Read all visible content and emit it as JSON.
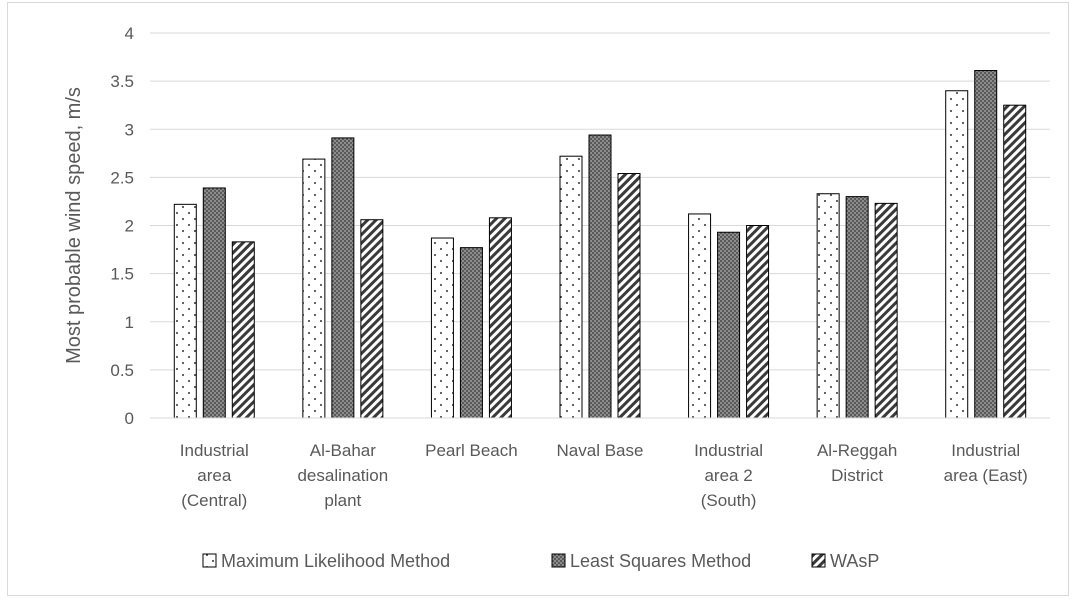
{
  "chart_data": {
    "type": "bar",
    "ylabel": "Most probable wind speed, m/s",
    "xlabel": "",
    "ylim": [
      0,
      4
    ],
    "yticks": [
      0,
      0.5,
      1,
      1.5,
      2,
      2.5,
      3,
      3.5,
      4
    ],
    "grid": true,
    "legend_position": "bottom",
    "categories": [
      [
        "Industrial",
        "area",
        "(Central)"
      ],
      [
        "Al-Bahar",
        "desalination",
        "plant"
      ],
      [
        "Pearl Beach"
      ],
      [
        "Naval Base"
      ],
      [
        "Industrial",
        "area 2",
        "(South)"
      ],
      [
        "Al-Reggah",
        "District"
      ],
      [
        "Industrial",
        "area (East)"
      ]
    ],
    "series": [
      {
        "name": "Maximum Likelihood Method",
        "pattern": "dots",
        "values": [
          2.22,
          2.69,
          1.87,
          2.72,
          2.12,
          2.33,
          3.4
        ]
      },
      {
        "name": "Least Squares Method",
        "pattern": "checker",
        "values": [
          2.39,
          2.91,
          1.77,
          2.94,
          1.93,
          2.3,
          3.61
        ]
      },
      {
        "name": "WAsP",
        "pattern": "diagonal",
        "values": [
          1.83,
          2.06,
          2.08,
          2.54,
          2.0,
          2.23,
          3.25
        ]
      }
    ]
  }
}
